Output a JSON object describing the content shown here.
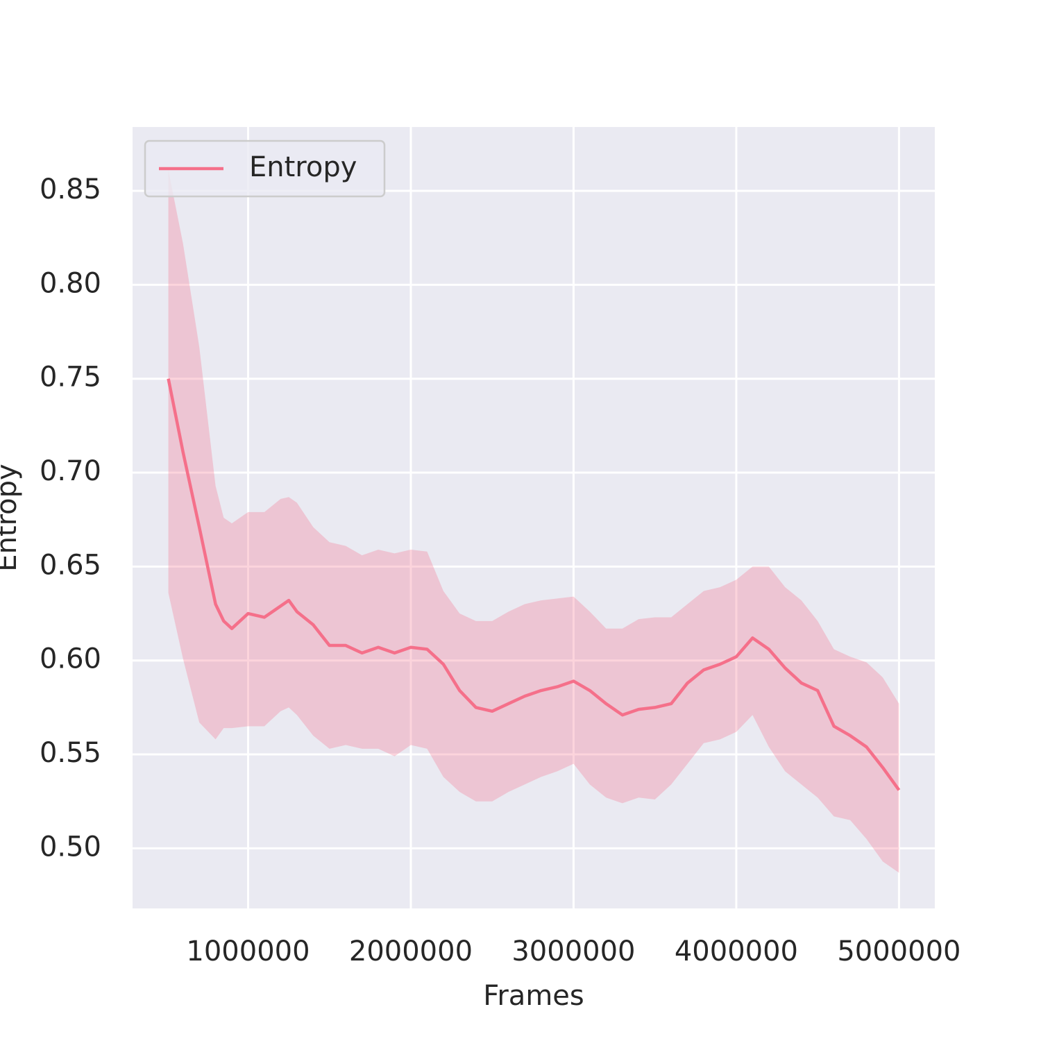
{
  "chart_data": {
    "type": "line",
    "x_label": "Frames",
    "y_label": "Entropy",
    "x": [
      510000,
      600000,
      700000,
      800000,
      850000,
      900000,
      1000000,
      1100000,
      1200000,
      1250000,
      1300000,
      1400000,
      1500000,
      1600000,
      1700000,
      1800000,
      1900000,
      2000000,
      2100000,
      2200000,
      2300000,
      2400000,
      2500000,
      2600000,
      2700000,
      2800000,
      2900000,
      3000000,
      3100000,
      3200000,
      3300000,
      3400000,
      3500000,
      3600000,
      3700000,
      3800000,
      3900000,
      4000000,
      4100000,
      4200000,
      4300000,
      4400000,
      4500000,
      4600000,
      4700000,
      4800000,
      4900000,
      5000000
    ],
    "series": [
      {
        "name": "Entropy",
        "color": "#f5708a",
        "values": [
          0.75,
          0.711,
          0.671,
          0.63,
          0.621,
          0.617,
          0.625,
          0.623,
          0.629,
          0.632,
          0.626,
          0.619,
          0.608,
          0.608,
          0.604,
          0.607,
          0.604,
          0.607,
          0.606,
          0.598,
          0.584,
          0.575,
          0.573,
          0.577,
          0.581,
          0.584,
          0.586,
          0.589,
          0.584,
          0.577,
          0.571,
          0.574,
          0.575,
          0.577,
          0.588,
          0.595,
          0.598,
          0.602,
          0.612,
          0.606,
          0.596,
          0.588,
          0.584,
          0.565,
          0.56,
          0.554,
          0.543,
          0.531
        ],
        "upper": [
          0.861,
          0.822,
          0.767,
          0.693,
          0.676,
          0.673,
          0.679,
          0.679,
          0.686,
          0.687,
          0.684,
          0.671,
          0.663,
          0.661,
          0.656,
          0.659,
          0.657,
          0.659,
          0.658,
          0.637,
          0.625,
          0.621,
          0.621,
          0.626,
          0.63,
          0.632,
          0.633,
          0.634,
          0.626,
          0.617,
          0.617,
          0.622,
          0.623,
          0.623,
          0.63,
          0.637,
          0.639,
          0.643,
          0.65,
          0.65,
          0.639,
          0.632,
          0.621,
          0.606,
          0.602,
          0.599,
          0.591,
          0.577
        ],
        "lower": [
          0.636,
          0.601,
          0.567,
          0.558,
          0.564,
          0.564,
          0.565,
          0.565,
          0.573,
          0.575,
          0.571,
          0.56,
          0.553,
          0.555,
          0.553,
          0.553,
          0.549,
          0.555,
          0.553,
          0.538,
          0.53,
          0.525,
          0.525,
          0.53,
          0.534,
          0.538,
          0.541,
          0.545,
          0.534,
          0.527,
          0.524,
          0.527,
          0.526,
          0.534,
          0.545,
          0.556,
          0.558,
          0.562,
          0.571,
          0.554,
          0.541,
          0.534,
          0.527,
          0.517,
          0.515,
          0.505,
          0.493,
          0.487
        ]
      }
    ],
    "xlim": [
      290000,
      5220000
    ],
    "xticks": [
      1000000,
      2000000,
      3000000,
      4000000,
      5000000
    ],
    "ylim": [
      0.468,
      0.884
    ],
    "yticks": [
      {
        "value": 0.5,
        "label": "0.50"
      },
      0.55,
      {
        "value": 0.6,
        "label": "0.60"
      },
      0.65,
      {
        "value": 0.7,
        "label": "0.70"
      },
      0.75,
      {
        "value": 0.8,
        "label": "0.80"
      },
      0.85
    ],
    "grid": true,
    "legend": "upper left"
  }
}
